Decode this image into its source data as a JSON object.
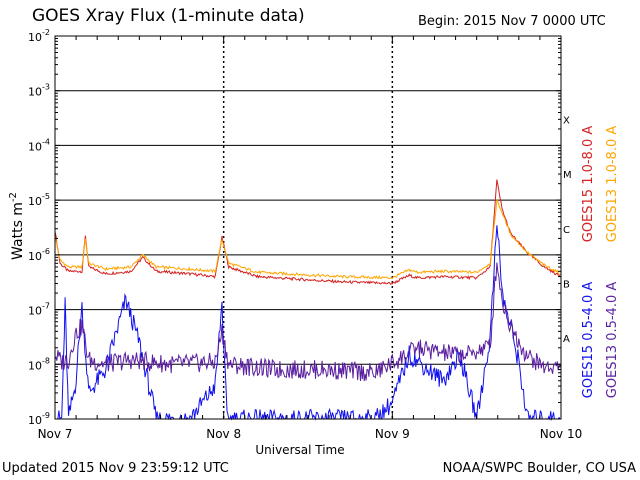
{
  "header": {
    "title": "GOES Xray Flux (1-minute data)",
    "begin": "Begin:  2015 Nov 7 0000 UTC"
  },
  "footer": {
    "updated": "Updated 2015 Nov  9 23:59:12 UTC",
    "credit": "NOAA/SWPC Boulder, CO USA"
  },
  "chart_data": {
    "type": "line",
    "xlabel": "Universal Time",
    "ylabel": "Watts m",
    "ylabel_sup": "-2",
    "x_range": [
      "2015-11-07 00:00",
      "2015-11-10 00:00"
    ],
    "x_ticks": [
      {
        "day": 0,
        "label": "Nov 7"
      },
      {
        "day": 1,
        "label": "Nov 8"
      },
      {
        "day": 2,
        "label": "Nov 9"
      },
      {
        "day": 3,
        "label": "Nov 10"
      }
    ],
    "y_scale": "log",
    "y_range": [
      1e-09,
      0.01
    ],
    "y_ticks": [
      {
        "base": "10",
        "exp": "-9",
        "value": 1e-09
      },
      {
        "base": "10",
        "exp": "-8",
        "value": 1e-08
      },
      {
        "base": "10",
        "exp": "-7",
        "value": 1e-07
      },
      {
        "base": "10",
        "exp": "-6",
        "value": 1e-06
      },
      {
        "base": "10",
        "exp": "-5",
        "value": 1e-05
      },
      {
        "base": "10",
        "exp": "-4",
        "value": 0.0001
      },
      {
        "base": "10",
        "exp": "-3",
        "value": 0.001
      },
      {
        "base": "10",
        "exp": "-2",
        "value": 0.01
      }
    ],
    "flare_classes": [
      {
        "label": "A",
        "value": 3e-08
      },
      {
        "label": "B",
        "value": 3e-07
      },
      {
        "label": "C",
        "value": 3e-06
      },
      {
        "label": "M",
        "value": 3e-05
      },
      {
        "label": "X",
        "value": 0.0003
      }
    ],
    "grid": "horizontal lines at each decade, dotted vertical lines at day boundaries",
    "legend_position": "right",
    "series": [
      {
        "name": "GOES15 1.0-8.0 A",
        "color": "#d42020",
        "points": [
          [
            0,
            2.8e-06
          ],
          [
            0.03,
            7e-07
          ],
          [
            0.08,
            5e-07
          ],
          [
            0.16,
            5e-07
          ],
          [
            0.18,
            2.3e-06
          ],
          [
            0.2,
            6e-07
          ],
          [
            0.3,
            4.5e-07
          ],
          [
            0.45,
            5e-07
          ],
          [
            0.52,
            9e-07
          ],
          [
            0.6,
            5e-07
          ],
          [
            0.8,
            4.5e-07
          ],
          [
            0.95,
            4e-07
          ],
          [
            0.99,
            2.1e-06
          ],
          [
            1.03,
            6e-07
          ],
          [
            1.2,
            4e-07
          ],
          [
            1.5,
            3.5e-07
          ],
          [
            1.7,
            3.2e-07
          ],
          [
            2.0,
            3e-07
          ],
          [
            2.1,
            4.2e-07
          ],
          [
            2.15,
            3.8e-07
          ],
          [
            2.3,
            4e-07
          ],
          [
            2.5,
            3.8e-07
          ],
          [
            2.58,
            6e-07
          ],
          [
            2.62,
            2.3e-05
          ],
          [
            2.65,
            7e-06
          ],
          [
            2.7,
            2.5e-06
          ],
          [
            2.8,
            1.1e-06
          ],
          [
            2.9,
            6e-07
          ],
          [
            3.0,
            4e-07
          ]
        ]
      },
      {
        "name": "GOES13 1.0-8.0 A",
        "color": "#ffa500",
        "points": [
          [
            0,
            2.2e-06
          ],
          [
            0.03,
            8e-07
          ],
          [
            0.08,
            6e-07
          ],
          [
            0.16,
            6e-07
          ],
          [
            0.18,
            2e-06
          ],
          [
            0.2,
            7e-07
          ],
          [
            0.3,
            5.5e-07
          ],
          [
            0.45,
            6e-07
          ],
          [
            0.52,
            1e-06
          ],
          [
            0.6,
            6e-07
          ],
          [
            0.8,
            5.5e-07
          ],
          [
            0.95,
            5e-07
          ],
          [
            0.99,
            1.9e-06
          ],
          [
            1.03,
            7e-07
          ],
          [
            1.2,
            4.8e-07
          ],
          [
            1.5,
            4.3e-07
          ],
          [
            1.7,
            4e-07
          ],
          [
            2.0,
            3.8e-07
          ],
          [
            2.1,
            5.3e-07
          ],
          [
            2.15,
            4.8e-07
          ],
          [
            2.3,
            5e-07
          ],
          [
            2.5,
            4.8e-07
          ],
          [
            2.58,
            7e-07
          ],
          [
            2.62,
            1e-05
          ],
          [
            2.65,
            6e-06
          ],
          [
            2.7,
            2.4e-06
          ],
          [
            2.8,
            1.1e-06
          ],
          [
            2.9,
            6.5e-07
          ],
          [
            3.0,
            4.5e-07
          ]
        ]
      },
      {
        "name": "GOES15 0.5-4.0 A",
        "color": "#1010ee",
        "points": [
          [
            0,
            1e-09
          ],
          [
            0.04,
            1e-09
          ],
          [
            0.06,
            1.2e-07
          ],
          [
            0.08,
            1e-09
          ],
          [
            0.12,
            4e-09
          ],
          [
            0.16,
            1.1e-07
          ],
          [
            0.2,
            3e-09
          ],
          [
            0.3,
            8e-09
          ],
          [
            0.42,
            1.5e-07
          ],
          [
            0.5,
            2.5e-08
          ],
          [
            0.6,
            1e-09
          ],
          [
            0.8,
            1e-09
          ],
          [
            0.95,
            4e-09
          ],
          [
            0.99,
            1.3e-07
          ],
          [
            1.02,
            1e-09
          ],
          [
            1.5,
            1e-09
          ],
          [
            1.9,
            1e-09
          ],
          [
            2.0,
            2e-09
          ],
          [
            2.1,
            1.5e-08
          ],
          [
            2.3,
            5e-09
          ],
          [
            2.4,
            1.5e-08
          ],
          [
            2.5,
            1e-09
          ],
          [
            2.58,
            3e-08
          ],
          [
            2.62,
            5e-06
          ],
          [
            2.65,
            2e-07
          ],
          [
            2.7,
            5e-08
          ],
          [
            2.75,
            1.1e-08
          ],
          [
            2.8,
            1e-09
          ],
          [
            3.0,
            1e-09
          ]
        ]
      },
      {
        "name": "GOES13 0.5-4.0 A",
        "color": "#5a1fa0",
        "points": [
          [
            0,
            1.5e-08
          ],
          [
            0.04,
            1.1e-08
          ],
          [
            0.08,
            1.2e-08
          ],
          [
            0.12,
            3.5e-08
          ],
          [
            0.16,
            5e-08
          ],
          [
            0.2,
            1.2e-08
          ],
          [
            0.3,
            1e-08
          ],
          [
            0.45,
            1.2e-08
          ],
          [
            0.55,
            1.1e-08
          ],
          [
            0.7,
            1e-08
          ],
          [
            0.95,
            1.1e-08
          ],
          [
            0.99,
            4e-08
          ],
          [
            1.03,
            1e-08
          ],
          [
            1.3,
            8e-09
          ],
          [
            1.6,
            8e-09
          ],
          [
            1.9,
            7e-09
          ],
          [
            2.05,
            1.3e-08
          ],
          [
            2.15,
            2e-08
          ],
          [
            2.3,
            1.6e-08
          ],
          [
            2.45,
            1.5e-08
          ],
          [
            2.58,
            2.2e-08
          ],
          [
            2.62,
            8e-07
          ],
          [
            2.65,
            1.5e-07
          ],
          [
            2.7,
            5e-08
          ],
          [
            2.8,
            1.4e-08
          ],
          [
            2.9,
            9e-09
          ],
          [
            3.0,
            9e-09
          ]
        ]
      }
    ]
  }
}
